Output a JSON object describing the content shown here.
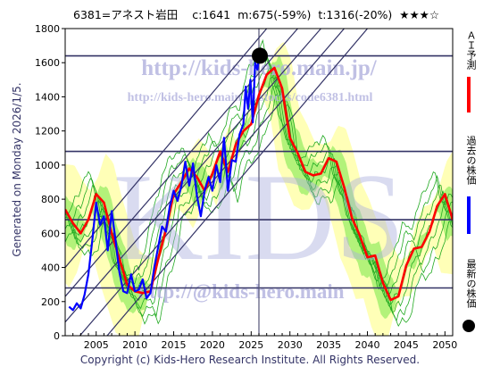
{
  "header": {
    "code_name": "6381=アネスト岩田",
    "current": "c:1641",
    "min_forecast": "m:675(-59%)",
    "target": "t:1316(-20%)",
    "stars": "★★★☆"
  },
  "side_note": "Generated on Monday 2026/1/5.",
  "footer": "Copyright (c) Kids-Hero Research Institute. All Rights Reserved.",
  "watermark": {
    "url1": "http://kids-hero.main.jp/",
    "url2": "http://kids-hero.main.jp/stocks/code6381.html",
    "url3": "http://@kids-hero.main"
  },
  "legend": {
    "ai_forecast": "ＡＩ予測",
    "past_price": "過去の株価",
    "latest_price": "最新の株価"
  },
  "colors": {
    "forecast": "#ff0000",
    "past": "#0000ff",
    "latest": "#000000",
    "band_fill": "#99ee66",
    "band_line": "#22aa22",
    "hline": "#333366",
    "trendline": "#333366",
    "background": "#ffffff"
  },
  "chart_data": {
    "type": "line",
    "xlim": [
      2001.0,
      2051.0
    ],
    "ylim": [
      0,
      1800
    ],
    "x_ticks": [
      2005,
      2010,
      2015,
      2020,
      2025,
      2030,
      2035,
      2040,
      2045,
      2050
    ],
    "y_ticks": [
      0,
      200,
      400,
      600,
      800,
      1000,
      1200,
      1400,
      1600,
      1800
    ],
    "grid": "off",
    "horizontal_lines": [
      1640,
      1080,
      680,
      280
    ],
    "vertical_line_x": 2026.0,
    "trendlines": [
      {
        "x": [
          2001.0,
          2034.0
        ],
        "y": [
          80,
          1800
        ]
      },
      {
        "x": [
          2001.0,
          2031.0
        ],
        "y": [
          230,
          1800
        ]
      },
      {
        "x": [
          2001.0,
          2037.0
        ],
        "y": [
          -100,
          1800
        ]
      },
      {
        "x": [
          2001.0,
          2040.0
        ],
        "y": [
          -290,
          1800
        ]
      },
      {
        "x": [
          2001.0,
          2027.0
        ],
        "y": [
          400,
          1800
        ]
      }
    ],
    "past_series": {
      "x": [
        2001.5,
        2002.0,
        2002.5,
        2003.0,
        2003.5,
        2004.0,
        2004.5,
        2005.0,
        2005.5,
        2006.0,
        2006.5,
        2007.0,
        2007.5,
        2008.0,
        2008.5,
        2009.0,
        2009.5,
        2010.0,
        2010.5,
        2011.0,
        2011.5,
        2012.0,
        2012.5,
        2013.0,
        2013.5,
        2014.0,
        2014.5,
        2015.0,
        2015.5,
        2016.0,
        2016.5,
        2017.0,
        2017.5,
        2018.0,
        2018.5,
        2019.0,
        2019.5,
        2020.0,
        2020.5,
        2021.0,
        2021.5,
        2022.0,
        2022.5,
        2023.0,
        2023.5,
        2024.0,
        2024.3,
        2024.6,
        2024.9,
        2025.2,
        2025.5,
        2025.8,
        2026.0
      ],
      "y": [
        170,
        150,
        190,
        160,
        240,
        360,
        560,
        780,
        650,
        700,
        500,
        730,
        560,
        370,
        260,
        250,
        360,
        260,
        270,
        330,
        220,
        250,
        400,
        520,
        640,
        610,
        760,
        850,
        790,
        880,
        1020,
        880,
        1010,
        820,
        700,
        850,
        930,
        850,
        1000,
        900,
        1160,
        850,
        1030,
        1020,
        1180,
        1240,
        1460,
        1330,
        1500,
        1250,
        1600,
        1560,
        1641
      ]
    },
    "forecast_series": {
      "x": [
        2001.0,
        2002.0,
        2003.0,
        2004.0,
        2005.0,
        2006.0,
        2007.0,
        2008.0,
        2009.0,
        2010.0,
        2011.0,
        2012.0,
        2013.0,
        2014.0,
        2015.0,
        2016.0,
        2017.0,
        2018.0,
        2019.0,
        2020.0,
        2021.0,
        2022.0,
        2023.0,
        2024.0,
        2025.0,
        2026.0,
        2027.0,
        2028.0,
        2029.0,
        2030.0,
        2031.0,
        2032.0,
        2033.0,
        2034.0,
        2035.0,
        2036.0,
        2037.0,
        2038.0,
        2039.0,
        2040.0,
        2041.0,
        2042.0,
        2043.0,
        2044.0,
        2045.0,
        2046.0,
        2047.0,
        2048.0,
        2049.0,
        2050.0,
        2051.0
      ],
      "y": [
        740,
        660,
        600,
        680,
        830,
        780,
        600,
        450,
        300,
        260,
        250,
        260,
        450,
        620,
        830,
        900,
        980,
        930,
        850,
        950,
        1080,
        960,
        1120,
        1200,
        1240,
        1410,
        1530,
        1570,
        1450,
        1160,
        1070,
        960,
        940,
        950,
        1040,
        1020,
        870,
        690,
        590,
        460,
        470,
        310,
        210,
        230,
        410,
        510,
        520,
        610,
        760,
        830,
        680
      ]
    }
  }
}
